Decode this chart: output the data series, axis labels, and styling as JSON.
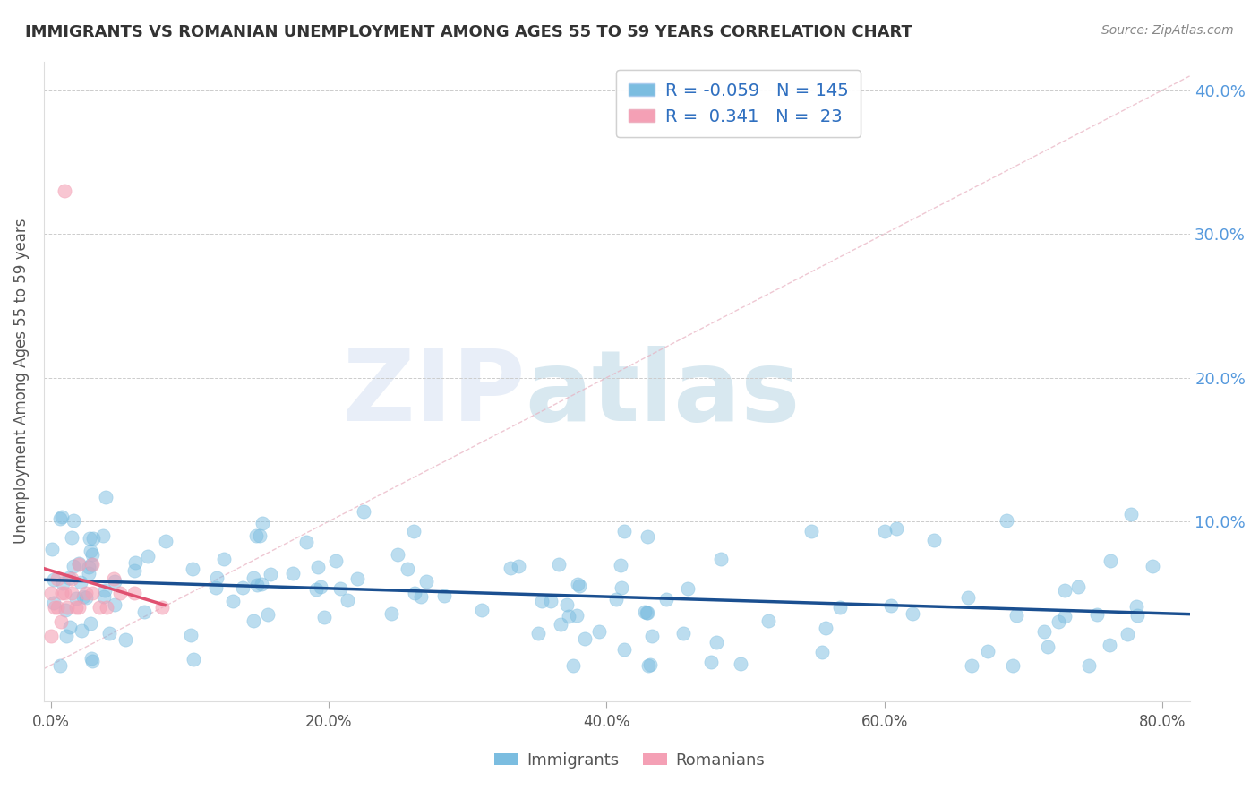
{
  "title": "IMMIGRANTS VS ROMANIAN UNEMPLOYMENT AMONG AGES 55 TO 59 YEARS CORRELATION CHART",
  "source": "Source: ZipAtlas.com",
  "ylabel": "Unemployment Among Ages 55 to 59 years",
  "xlim": [
    -0.005,
    0.82
  ],
  "ylim": [
    -0.025,
    0.42
  ],
  "yticks": [
    0.0,
    0.1,
    0.2,
    0.3,
    0.4
  ],
  "right_ytick_labels": [
    "",
    "10.0%",
    "20.0%",
    "30.0%",
    "40.0%"
  ],
  "xticks": [
    0.0,
    0.2,
    0.4,
    0.6,
    0.8
  ],
  "xtick_labels": [
    "0.0%",
    "20.0%",
    "40.0%",
    "60.0%",
    "80.0%"
  ],
  "immigrant_R": -0.059,
  "immigrant_N": 145,
  "romanian_R": 0.341,
  "romanian_N": 23,
  "immigrant_color": "#7bbde0",
  "romanian_color": "#f4a0b5",
  "immigrant_line_color": "#1a4f90",
  "romanian_line_color": "#e05070",
  "axis_label_color": "#5599dd",
  "watermark_color": "#e8eef8",
  "diag_color": "#e8b8c8",
  "grid_color": "#cccccc"
}
